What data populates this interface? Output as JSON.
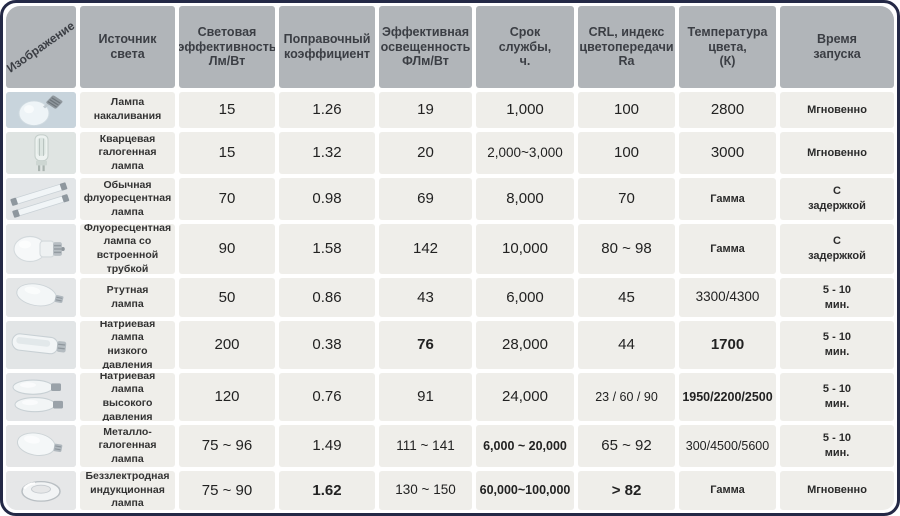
{
  "chart_data": {
    "type": "table",
    "columns": [
      {
        "id": "image",
        "label": "Изображение"
      },
      {
        "id": "light-source",
        "label": "Источник\nсвета"
      },
      {
        "id": "luminous-efficacy",
        "label": "Световая\nэффективность\nЛм/Вт"
      },
      {
        "id": "correction-coefficient",
        "label": "Поправочный\nкоэффициент"
      },
      {
        "id": "effective-illuminance",
        "label": "Эффективная\nосвещенность\nФЛм/Вт"
      },
      {
        "id": "service-life",
        "label": "Срок\nслужбы,\nч."
      },
      {
        "id": "color-rendering-index",
        "label": "CRL, индекс\nцветопередачи\nRa"
      },
      {
        "id": "color-temperature",
        "label": "Температура\nцвета,\n(К)"
      },
      {
        "id": "startup-time",
        "label": "Время\nзапуска"
      }
    ],
    "rows": [
      {
        "icon": "incandescent-lamp",
        "source": "Лампа\nнакаливания",
        "values": [
          "15",
          "1.26",
          "19",
          "1,000",
          "100",
          "2800",
          "Мгновенно"
        ]
      },
      {
        "icon": "halogen-lamp",
        "source": "Кварцевая\nгалогенная\nлампа",
        "values": [
          "15",
          "1.32",
          "20",
          "2,000~3,000",
          "100",
          "3000",
          "Мгновенно"
        ]
      },
      {
        "icon": "fluorescent-tubes",
        "source": "Обычная\nфлуоресцентная\nлампа",
        "values": [
          "70",
          "0.98",
          "69",
          "8,000",
          "70",
          "Гамма",
          "С\nзадержкой"
        ]
      },
      {
        "icon": "compact-fluorescent-lamp",
        "source": "Флуоресцентная\nлампа со\nвстроенной\nтрубкой",
        "values": [
          "90",
          "1.58",
          "142",
          "10,000",
          "80 ~ 98",
          "Гамма",
          "С\nзадержкой"
        ]
      },
      {
        "icon": "mercury-lamp",
        "source": "Ртутная\nлампа",
        "values": [
          "50",
          "0.86",
          "43",
          "6,000",
          "45",
          "3300/4300",
          "5 - 10\nмин."
        ]
      },
      {
        "icon": "sodium-low-pressure-lamp",
        "source": "Натриевая\nлампа\nнизкого\nдавления",
        "values": [
          "200",
          "0.38",
          "76",
          "28,000",
          "44",
          "1700",
          "5 - 10\nмин."
        ],
        "bold": [
          2,
          5
        ]
      },
      {
        "icon": "sodium-high-pressure-lamp",
        "source": "Натриевая\nлампа\nвысокого\nдавления",
        "values": [
          "120",
          "0.76",
          "91",
          "24,000",
          "23 / 60 / 90",
          "1950/2200/2500",
          "5 - 10\nмин."
        ],
        "bold": [
          5
        ]
      },
      {
        "icon": "metal-halide-lamp",
        "source": "Металло-\nгалогенная\nлампа",
        "values": [
          "75 ~ 96",
          "1.49",
          "111 ~ 141",
          "6,000 ~ 20,000",
          "65 ~ 92",
          "300/4500/5600",
          "5 - 10\nмин."
        ],
        "bold": [
          3
        ]
      },
      {
        "icon": "induction-lamp",
        "source": "Беззлектродная\nиндукционная\nлампа",
        "values": [
          "75 ~ 90",
          "1.62",
          "130 ~ 150",
          "60,000~100,000",
          "> 82",
          "Гамма",
          "Мгновенно"
        ],
        "bold": [
          1,
          3,
          4
        ]
      }
    ]
  }
}
